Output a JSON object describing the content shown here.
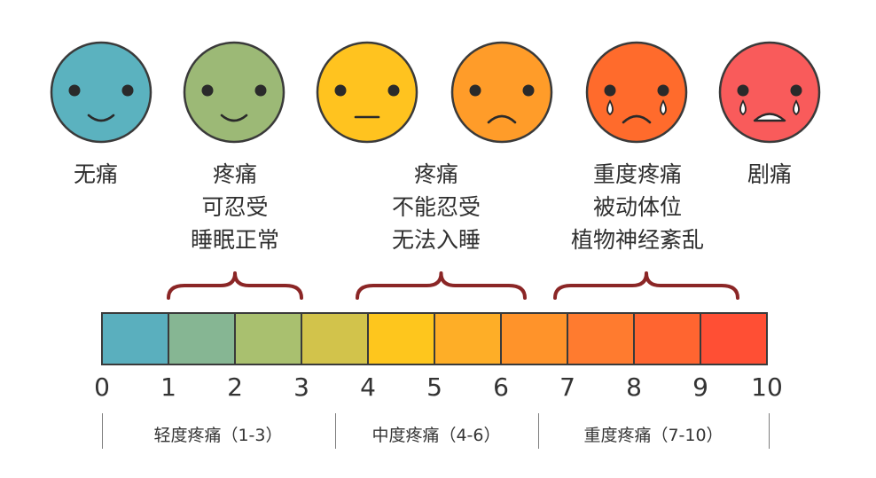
{
  "faces": [
    {
      "id": "no-pain",
      "color": "#5BB2BF",
      "mouth": "smile",
      "tears": false,
      "label_lines": [
        "无痛"
      ]
    },
    {
      "id": "mild",
      "color": "#9CB976",
      "mouth": "smile",
      "tears": false,
      "label_lines": [
        "疼痛",
        "可忍受",
        "睡眠正常"
      ]
    },
    {
      "id": "neutral",
      "color": "#FFC31F",
      "mouth": "flat",
      "tears": false,
      "label_lines": []
    },
    {
      "id": "moderate",
      "color": "#FF9C29",
      "mouth": "frown",
      "tears": false,
      "label_lines": [
        "疼痛",
        "不能忍受",
        "无法入睡"
      ]
    },
    {
      "id": "severe",
      "color": "#FF6B2C",
      "mouth": "frown",
      "tears": true,
      "label_lines": [
        "重度疼痛",
        "被动体位",
        "植物神经紊乱"
      ]
    },
    {
      "id": "extreme",
      "color": "#F95B5B",
      "mouth": "cry",
      "tears": true,
      "label_lines": [
        "剧痛"
      ]
    }
  ],
  "scale": {
    "min": 0,
    "max": 10,
    "ticks": [
      "0",
      "1",
      "2",
      "3",
      "4",
      "5",
      "6",
      "7",
      "8",
      "9",
      "10"
    ],
    "segment_colors": [
      "#5AAFBE",
      "#86B693",
      "#A9C06F",
      "#D2C34B",
      "#FEC61D",
      "#FEAE27",
      "#FF932A",
      "#FF7B2F",
      "#FF6530",
      "#FF4F34"
    ]
  },
  "categories": [
    {
      "label": "轻度疼痛（1-3）"
    },
    {
      "label": "中度疼痛（4-6）"
    },
    {
      "label": "重度疼痛（7-10）"
    }
  ],
  "brace_color": "#8B2626"
}
